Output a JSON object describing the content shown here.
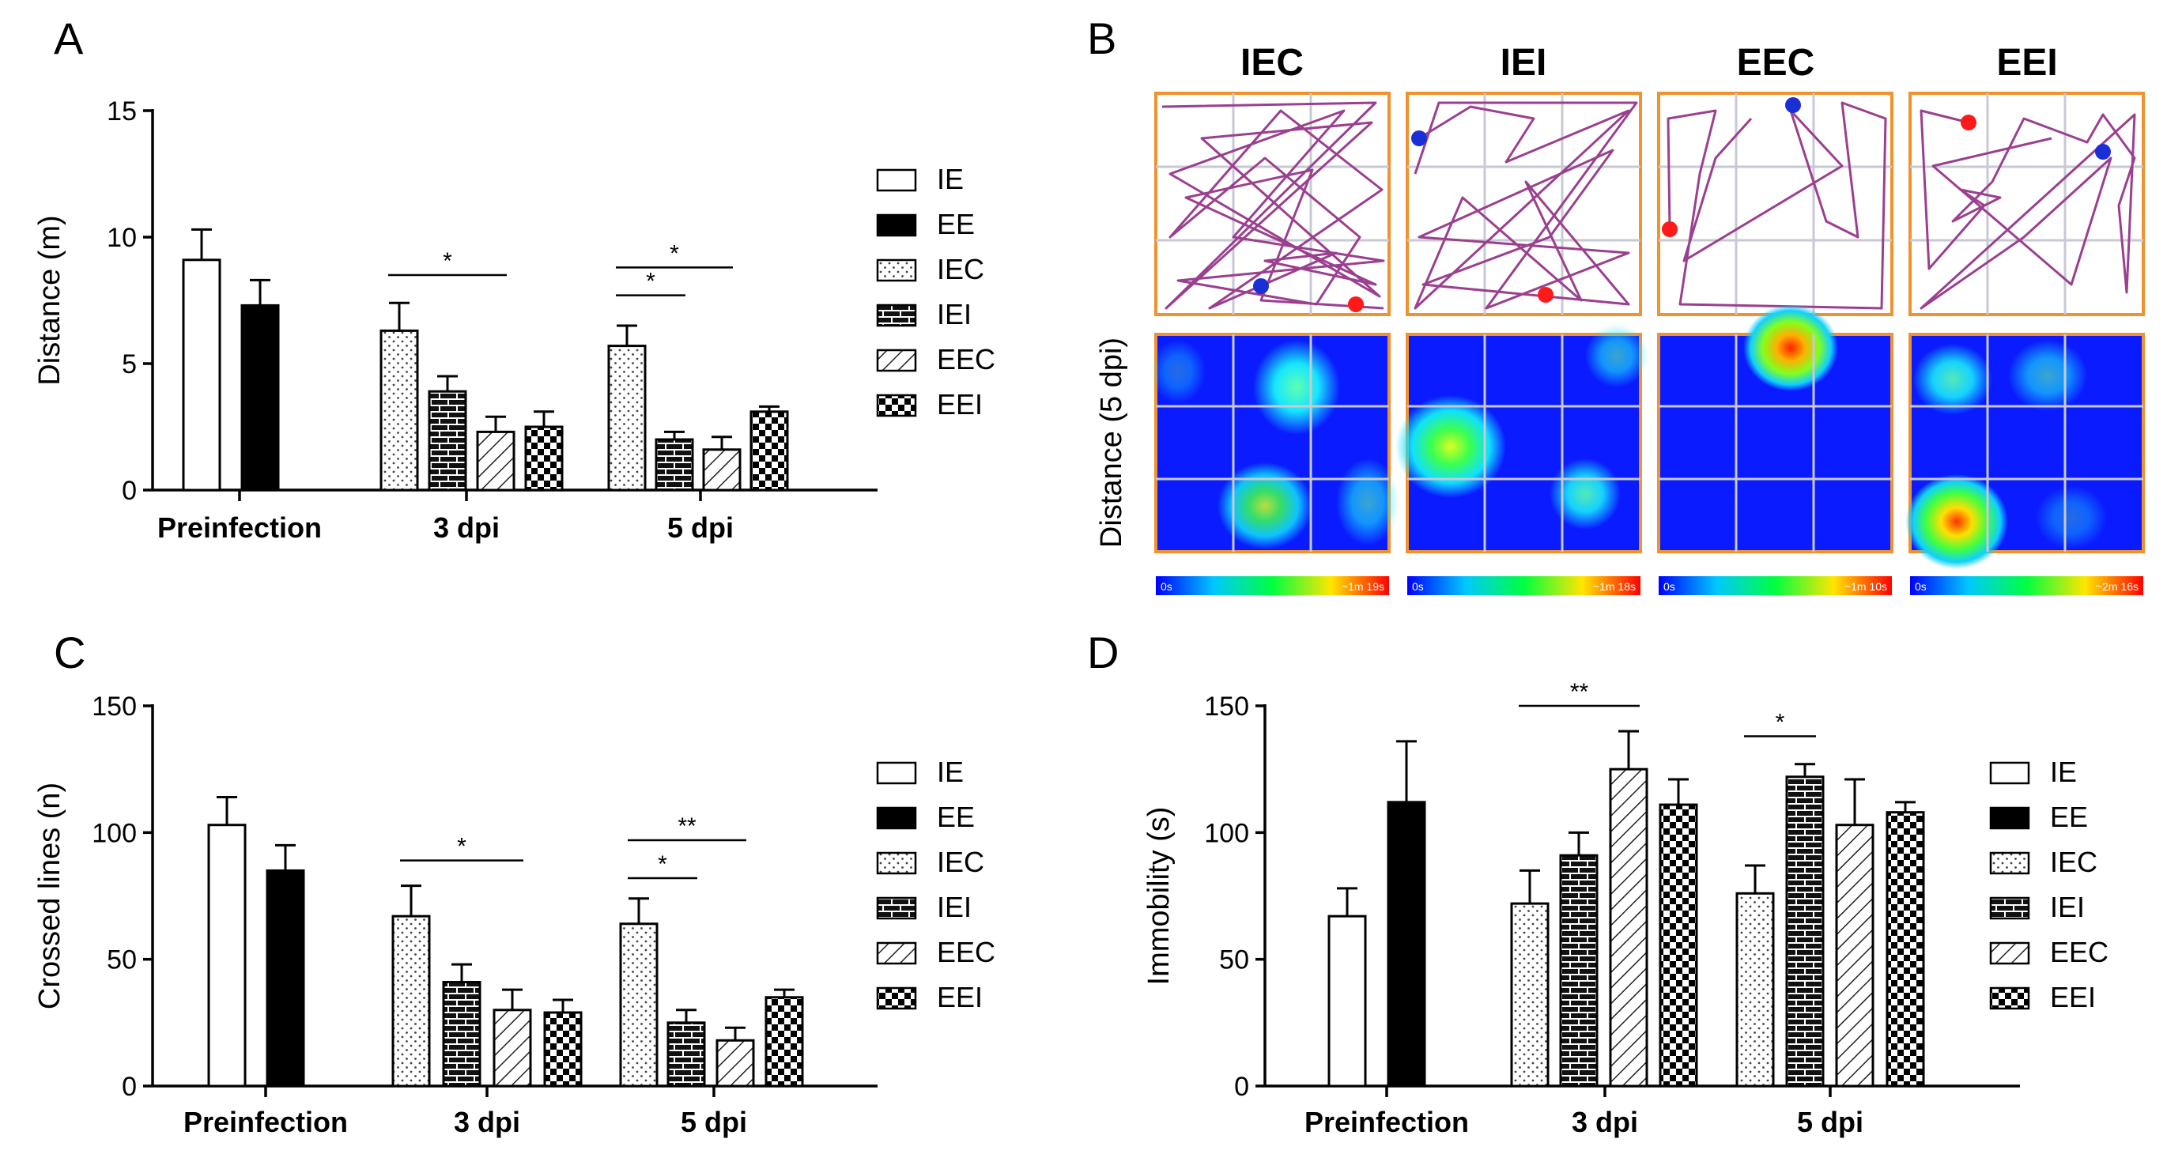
{
  "figure": {
    "panel_labels": {
      "A": "A",
      "B": "B",
      "C": "C",
      "D": "D"
    },
    "legend": [
      {
        "key": "IE",
        "label": "IE",
        "pattern": "white"
      },
      {
        "key": "EE",
        "label": "EE",
        "pattern": "black"
      },
      {
        "key": "IEC",
        "label": "IEC",
        "pattern": "dots"
      },
      {
        "key": "IEI",
        "label": "IEI",
        "pattern": "brick"
      },
      {
        "key": "EEC",
        "label": "EEC",
        "pattern": "hatch"
      },
      {
        "key": "EEI",
        "label": "EEI",
        "pattern": "checker"
      }
    ],
    "panel_b": {
      "ylabel": "Distance (5 dpi)",
      "trials": [
        {
          "title": "IEC",
          "scale_min": "0s",
          "scale_max": "~1m 19s"
        },
        {
          "title": "IEI",
          "scale_min": "0s",
          "scale_max": "~1m 18s"
        },
        {
          "title": "EEC",
          "scale_min": "0s",
          "scale_max": "~1m 10s"
        },
        {
          "title": "EEI",
          "scale_min": "0s",
          "scale_max": "~2m 16s"
        }
      ]
    }
  },
  "colors": {
    "track": "#9b3f8f",
    "frame": "#f0922e",
    "grid": "#c7c9d4",
    "start_dot": "#ff1a1a",
    "end_dot": "#1a2fd6"
  },
  "chart_data": [
    {
      "id": "A",
      "type": "bar",
      "title": "",
      "xlabel": "",
      "ylabel": "Distance (m)",
      "ylim": [
        0,
        15
      ],
      "yticks": [
        0,
        5,
        10,
        15
      ],
      "groups": [
        {
          "label": "Preinfection",
          "series": [
            "IE",
            "EE",
            "IEC",
            "IEI",
            "EEC",
            "EEI"
          ],
          "values": [
            9.1,
            7.3,
            0,
            0,
            0,
            0
          ],
          "errors": [
            1.2,
            1.0,
            0,
            0,
            0,
            0
          ]
        },
        {
          "label": "3 dpi",
          "series": [
            "IEC",
            "IEI",
            "EEC",
            "EEI"
          ],
          "values": [
            6.3,
            3.9,
            2.3,
            2.5
          ],
          "errors": [
            1.1,
            0.6,
            0.6,
            0.6
          ]
        },
        {
          "label": "5 dpi",
          "series": [
            "IEC",
            "IEI",
            "EEC",
            "EEI"
          ],
          "values": [
            5.7,
            2.0,
            1.6,
            3.1
          ],
          "errors": [
            0.8,
            0.3,
            0.5,
            0.2
          ]
        }
      ],
      "significance": [
        {
          "group": 1,
          "from": 0,
          "to": 2,
          "y": 8.5,
          "label": "*"
        },
        {
          "group": 2,
          "from": 0,
          "to": 1,
          "y": 7.7,
          "label": "*"
        },
        {
          "group": 2,
          "from": 0,
          "to": 2,
          "y": 8.8,
          "label": "*"
        }
      ]
    },
    {
      "id": "C",
      "type": "bar",
      "title": "",
      "xlabel": "",
      "ylabel": "Crossed lines (n)",
      "ylim": [
        0,
        150
      ],
      "yticks": [
        0,
        50,
        100,
        150
      ],
      "groups": [
        {
          "label": "Preinfection",
          "series": [
            "IE",
            "EE",
            "IEC",
            "IEI",
            "EEC",
            "EEI"
          ],
          "values": [
            103,
            85,
            0,
            0,
            0,
            0
          ],
          "errors": [
            11,
            10,
            0,
            0,
            0,
            0
          ]
        },
        {
          "label": "3 dpi",
          "series": [
            "IEC",
            "IEI",
            "EEC",
            "EEI"
          ],
          "values": [
            67,
            41,
            30,
            29
          ],
          "errors": [
            12,
            7,
            8,
            5
          ]
        },
        {
          "label": "5 dpi",
          "series": [
            "IEC",
            "IEI",
            "EEC",
            "EEI"
          ],
          "values": [
            64,
            25,
            18,
            35
          ],
          "errors": [
            10,
            5,
            5,
            3
          ]
        }
      ],
      "significance": [
        {
          "group": 1,
          "from": 0,
          "to": 2,
          "y": 89,
          "label": "*"
        },
        {
          "group": 2,
          "from": 0,
          "to": 1,
          "y": 82,
          "label": "*"
        },
        {
          "group": 2,
          "from": 0,
          "to": 2,
          "y": 97,
          "label": "**"
        }
      ]
    },
    {
      "id": "D",
      "type": "bar",
      "title": "",
      "xlabel": "",
      "ylabel": "Immobility (s)",
      "ylim": [
        0,
        150
      ],
      "yticks": [
        0,
        50,
        100,
        150
      ],
      "groups": [
        {
          "label": "Preinfection",
          "series": [
            "IE",
            "EE",
            "IEC",
            "IEI",
            "EEC",
            "EEI"
          ],
          "values": [
            67,
            112,
            0,
            0,
            0,
            0
          ],
          "errors": [
            11,
            24,
            0,
            0,
            0,
            0
          ]
        },
        {
          "label": "3 dpi",
          "series": [
            "IEC",
            "IEI",
            "EEC",
            "EEI"
          ],
          "values": [
            72,
            91,
            125,
            111
          ],
          "errors": [
            13,
            9,
            15,
            10
          ]
        },
        {
          "label": "5 dpi",
          "series": [
            "IEC",
            "IEI",
            "EEC",
            "EEI"
          ],
          "values": [
            76,
            122,
            103,
            108
          ],
          "errors": [
            11,
            5,
            18,
            4
          ]
        }
      ],
      "significance": [
        {
          "group": 1,
          "from": 0,
          "to": 2,
          "y": 150,
          "label": "**"
        },
        {
          "group": 2,
          "from": 0,
          "to": 1,
          "y": 138,
          "label": "*"
        }
      ]
    }
  ]
}
